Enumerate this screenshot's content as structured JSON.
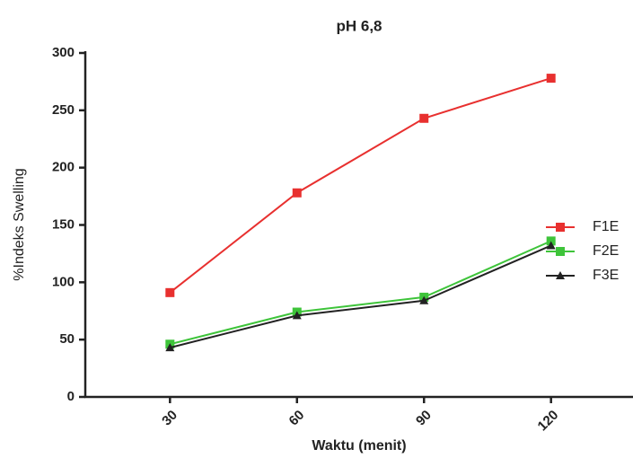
{
  "chart_data": {
    "type": "line",
    "title": "pH 6,8",
    "x_label": "Waktu (menit)",
    "y_label": "%Indeks Swelling",
    "x": [
      30,
      60,
      90,
      120
    ],
    "series": [
      {
        "name": "F1E",
        "color": "#e8302f",
        "marker": "square",
        "values": [
          91,
          178,
          243,
          278
        ]
      },
      {
        "name": "F2E",
        "color": "#3ec43a",
        "marker": "square",
        "values": [
          46,
          74,
          87,
          136
        ]
      },
      {
        "name": "F3E",
        "color": "#222222",
        "marker": "triangle",
        "values": [
          43,
          71,
          84,
          132
        ]
      }
    ],
    "xlim": [
      10,
      140
    ],
    "xticks": [
      30,
      60,
      90,
      120
    ],
    "ylim": [
      0,
      300
    ],
    "yticks": [
      0,
      50,
      100,
      150,
      200,
      250,
      300
    ],
    "legend": "right"
  }
}
